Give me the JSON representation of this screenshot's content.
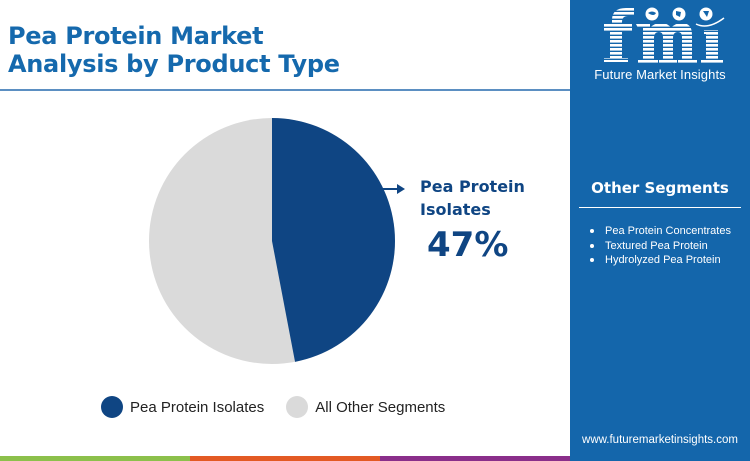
{
  "header": {
    "title_line1": "Pea Protein Market",
    "title_line2": "Analysis by Product Type"
  },
  "chart_data": {
    "type": "pie",
    "title": "Pea Protein Market Analysis by Product Type",
    "categories": [
      "Pea Protein Isolates",
      "All Other Segments"
    ],
    "values": [
      47,
      53
    ],
    "unit": "%",
    "colors": [
      "#0f4583",
      "#dadada"
    ],
    "start_angle": "12 o'clock, clockwise",
    "annotations": [
      {
        "target": "Pea Protein Isolates",
        "label": "Pea Protein Isolates",
        "value": "47%"
      }
    ],
    "legend_position": "bottom"
  },
  "callout": {
    "label": "Pea Protein Isolates",
    "value": "47%",
    "color": "#0f4583"
  },
  "legend": {
    "items": [
      {
        "label": "Pea Protein Isolates",
        "color": "#0f4583"
      },
      {
        "label": "All Other Segments",
        "color": "#dadada"
      }
    ]
  },
  "sidebar": {
    "logo_text": "fmi",
    "logo_subtitle": "Future Market Insights",
    "other_segments_title": "Other Segments",
    "other_segments": [
      "Pea Protein Concentrates",
      "Textured Pea Protein",
      "Hydrolyzed Pea Protein"
    ],
    "website": "www.futuremarketinsights.com",
    "background": "#1466ab"
  },
  "footer_bar": {
    "colors": [
      "#8cc04b",
      "#e35a24",
      "#8a2e8a"
    ]
  }
}
